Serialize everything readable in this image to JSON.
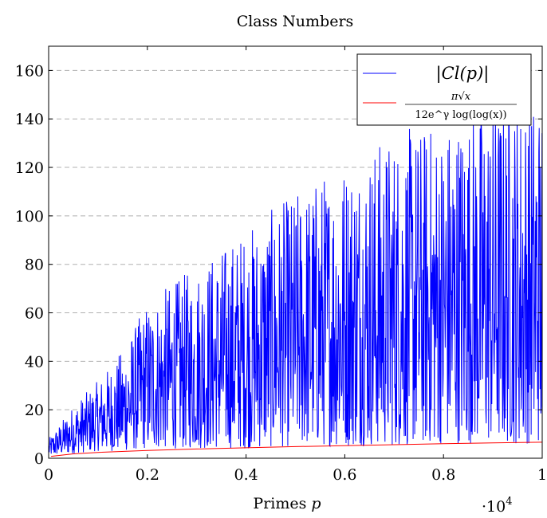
{
  "chart_data": {
    "type": "line",
    "title": "Class Numbers",
    "xlabel": "Primes",
    "xlabel_var": "p",
    "x_multiplier": "·10",
    "x_multiplier_exp": "4",
    "xlim": [
      0,
      1
    ],
    "ylim": [
      0,
      170
    ],
    "x_ticks": [
      "0",
      "0.2",
      "0.4",
      "0.6",
      "0.8",
      "1"
    ],
    "y_ticks": [
      "0",
      "20",
      "40",
      "60",
      "80",
      "100",
      "120",
      "140",
      "160"
    ],
    "grid": "horizontal-dashed",
    "legend_position": "top-right",
    "series": [
      {
        "name": "|Cl(p)|",
        "color": "#0000ff",
        "description": "noisy class number values over primes up to 10^4",
        "envelope_x": [
          0,
          0.05,
          0.1,
          0.15,
          0.2,
          0.3,
          0.4,
          0.5,
          0.6,
          0.7,
          0.8,
          0.9,
          1.0
        ],
        "envelope_max": [
          8,
          22,
          32,
          45,
          65,
          80,
          95,
          110,
          125,
          135,
          140,
          150,
          152
        ],
        "envelope_min": [
          1,
          2,
          3,
          3,
          4,
          4,
          4,
          5,
          5,
          5,
          6,
          6,
          6
        ]
      },
      {
        "name_parts": {
          "num": "π√x",
          "den": "12e^γ log(log(x))"
        },
        "color": "#ff0000",
        "x": [
          0.005,
          0.05,
          0.1,
          0.2,
          0.3,
          0.4,
          0.5,
          0.6,
          0.7,
          0.8,
          0.9,
          1.0
        ],
        "y": [
          0.8,
          1.8,
          2.4,
          3.2,
          3.8,
          4.3,
          4.8,
          5.2,
          5.6,
          6.0,
          6.3,
          6.6
        ]
      }
    ]
  }
}
